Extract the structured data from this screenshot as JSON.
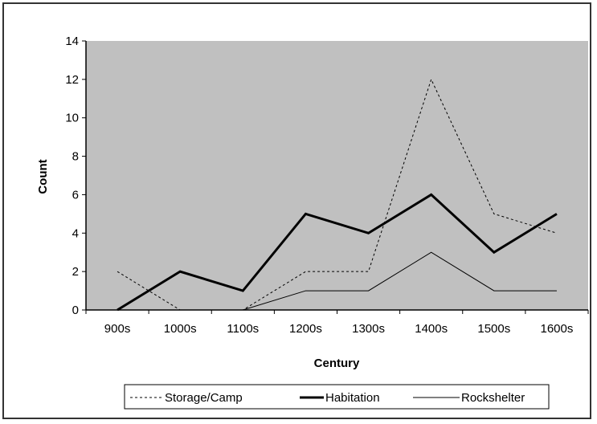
{
  "chart_data": {
    "type": "line",
    "categories": [
      "900s",
      "1000s",
      "1100s",
      "1200s",
      "1300s",
      "1400s",
      "1500s",
      "1600s"
    ],
    "series": [
      {
        "name": "Storage/Camp",
        "values": [
          2,
          0,
          0,
          2,
          2,
          12,
          5,
          4
        ],
        "style": "dashed",
        "color": "#000000"
      },
      {
        "name": "Habitation",
        "values": [
          0,
          2,
          1,
          5,
          4,
          6,
          3,
          5
        ],
        "style": "thick",
        "color": "#000000"
      },
      {
        "name": "Rockshelter",
        "values": [
          null,
          null,
          0,
          1,
          1,
          3,
          1,
          1
        ],
        "style": "thin",
        "color": "#000000"
      }
    ],
    "xlabel": "Century",
    "ylabel": "Count",
    "ylim": [
      0,
      14
    ],
    "yticks": [
      0,
      2,
      4,
      6,
      8,
      10,
      12,
      14
    ],
    "grid": false,
    "plot_background": "#c0c0c0",
    "legend_position": "bottom"
  }
}
